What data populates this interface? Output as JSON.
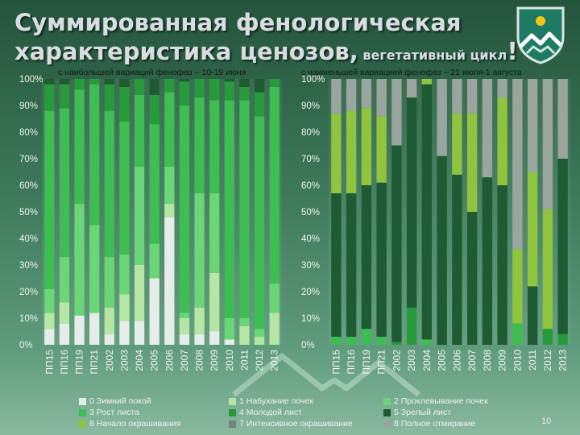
{
  "title": {
    "line1": "Суммированная фенологическая",
    "line2": "характеристика ценозов,",
    "line2_small": "вегетативный цикл",
    "exclaim": "!"
  },
  "page_number": "10",
  "colors": {
    "c0": "#e6ece8",
    "c1": "#b6e6a4",
    "c2": "#6bd676",
    "c3": "#3dbd52",
    "c4": "#279a3c",
    "c5": "#1e5a32",
    "c6": "#8ec43e",
    "c7": "#73837d",
    "c8": "#9aa59f"
  },
  "chart_data": [
    {
      "type": "bar",
      "stacked": true,
      "title": "с наибольшей вариаций фенофаз – 10-19 июня",
      "categories": [
        "ПП15",
        "ПП16",
        "ПП19",
        "ПП21",
        "2002",
        "2003",
        "2004",
        "2005",
        "2006",
        "2007",
        "2008",
        "2009",
        "2010",
        "2011",
        "2012",
        "2013"
      ],
      "ylim": [
        0,
        100
      ],
      "y_ticks": [
        "0%",
        "10%",
        "20%",
        "30%",
        "40%",
        "50%",
        "60%",
        "70%",
        "80%",
        "90%",
        "100%"
      ],
      "series": [
        {
          "name": "0 Зимний покой",
          "values": [
            6,
            8,
            11,
            12,
            4,
            9,
            9,
            25,
            48,
            4,
            4,
            5,
            2,
            0,
            0,
            0
          ]
        },
        {
          "name": "1 Набухание почек",
          "values": [
            6,
            8,
            0,
            0,
            10,
            10,
            21,
            0,
            5,
            6,
            10,
            22,
            0,
            7,
            3,
            12
          ]
        },
        {
          "name": "2 Проклевывание почек",
          "values": [
            9,
            17,
            42,
            33,
            19,
            15,
            37,
            13,
            14,
            2,
            43,
            30,
            8,
            3,
            3,
            11
          ]
        },
        {
          "name": "3 Рост листа",
          "values": [
            67,
            56,
            43,
            53,
            55,
            50,
            27,
            45,
            28,
            78,
            36,
            35,
            82,
            82,
            80,
            74
          ]
        },
        {
          "name": "4 Молодой лист",
          "values": [
            10,
            9,
            4,
            2,
            10,
            13,
            6,
            11,
            5,
            9,
            7,
            8,
            7,
            5,
            9,
            3
          ]
        },
        {
          "name": "5 Зрелый лист",
          "values": [
            2,
            2,
            0,
            0,
            2,
            3,
            0,
            6,
            0,
            1,
            0,
            0,
            1,
            3,
            5,
            0
          ]
        }
      ]
    },
    {
      "type": "bar",
      "stacked": true,
      "title": "с наименьшей вариацией фенофаз – 21 июля-1 августа",
      "categories": [
        "ПП15",
        "ПП16",
        "ПП19",
        "ПП21",
        "2002",
        "2003",
        "2004",
        "2005",
        "2006",
        "2007",
        "2008",
        "2009",
        "2010",
        "2011",
        "2012",
        "2013"
      ],
      "ylim": [
        0,
        100
      ],
      "y_ticks": [
        "0%",
        "10%",
        "20%",
        "30%",
        "40%",
        "50%",
        "60%",
        "70%",
        "80%",
        "90%",
        "100%"
      ],
      "series": [
        {
          "name": "3 Рост листа",
          "values": [
            3,
            3,
            6,
            3,
            0,
            0,
            2,
            0,
            0,
            0,
            0,
            0,
            8,
            0,
            0,
            0
          ]
        },
        {
          "name": "4 Молодой лист",
          "values": [
            0,
            0,
            0,
            0,
            1,
            14,
            0,
            0,
            0,
            0,
            0,
            0,
            0,
            0,
            6,
            4
          ]
        },
        {
          "name": "5 Зрелый лист",
          "values": [
            54,
            54,
            54,
            58,
            74,
            79,
            96,
            71,
            64,
            50,
            63,
            60,
            0,
            22,
            0,
            66
          ]
        },
        {
          "name": "6 Начало окрашивания",
          "values": [
            30,
            31,
            29,
            25,
            0,
            0,
            2,
            0,
            23,
            37,
            0,
            33,
            28,
            43,
            45,
            0
          ]
        },
        {
          "name": "7 Интенсивное окрашивание",
          "values": [
            0,
            0,
            0,
            0,
            0,
            0,
            0,
            0,
            0,
            0,
            0,
            0,
            0,
            0,
            0,
            0
          ]
        },
        {
          "name": "8 Полное отмирание",
          "values": [
            13,
            12,
            11,
            14,
            25,
            7,
            0,
            29,
            13,
            13,
            37,
            7,
            64,
            35,
            49,
            30
          ]
        }
      ]
    }
  ],
  "legend": [
    {
      "label": "0 Зимний покой",
      "color": "#e6ece8"
    },
    {
      "label": "1 Набухание почек",
      "color": "#b6e6a4"
    },
    {
      "label": "2 Проклевывание почек",
      "color": "#6bd676"
    },
    {
      "label": "3 Рост листа",
      "color": "#3dbd52"
    },
    {
      "label": "4 Молодой лист",
      "color": "#279a3c"
    },
    {
      "label": "5 Зрелый лист",
      "color": "#1e5a32"
    },
    {
      "label": "6 Начало окрашивания",
      "color": "#8ec43e"
    },
    {
      "label": "7 Интенсивное окрашивание",
      "color": "#73837d"
    },
    {
      "label": "8 Полное отмирание",
      "color": "#9aa59f"
    }
  ]
}
